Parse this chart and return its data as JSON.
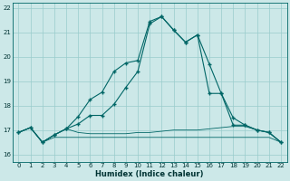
{
  "xlabel": "Humidex (Indice chaleur)",
  "bg_color": "#cce8e8",
  "line_color": "#006666",
  "grid_color": "#99cccc",
  "xlim": [
    -0.5,
    22.5
  ],
  "ylim": [
    15.7,
    22.2
  ],
  "yticks": [
    16,
    17,
    18,
    19,
    20,
    21,
    22
  ],
  "xticks": [
    0,
    1,
    2,
    3,
    4,
    5,
    6,
    7,
    8,
    9,
    10,
    11,
    12,
    13,
    14,
    15,
    16,
    17,
    18,
    19,
    20,
    21,
    22
  ],
  "line1_x": [
    0,
    1,
    2,
    3,
    4,
    5,
    6,
    7,
    8,
    9,
    10,
    11,
    12,
    13,
    14,
    15,
    16,
    17,
    18,
    19,
    20,
    21,
    22
  ],
  "line1_y": [
    16.9,
    17.1,
    16.5,
    16.7,
    16.7,
    16.7,
    16.7,
    16.7,
    16.7,
    16.7,
    16.7,
    16.7,
    16.7,
    16.7,
    16.7,
    16.7,
    16.7,
    16.7,
    16.7,
    16.7,
    16.7,
    16.7,
    16.5
  ],
  "line2_x": [
    0,
    1,
    2,
    3,
    4,
    5,
    6,
    7,
    8,
    9,
    10,
    11,
    12,
    13,
    14,
    15,
    16,
    17,
    18,
    19,
    20,
    21,
    22
  ],
  "line2_y": [
    16.9,
    17.1,
    16.5,
    16.8,
    17.05,
    16.9,
    16.85,
    16.85,
    16.85,
    16.85,
    16.9,
    16.9,
    16.95,
    17.0,
    17.0,
    17.0,
    17.05,
    17.1,
    17.15,
    17.15,
    17.0,
    16.9,
    16.5
  ],
  "line3_x": [
    0,
    1,
    2,
    3,
    4,
    5,
    6,
    7,
    8,
    9,
    10,
    11,
    12,
    13,
    14,
    15,
    16,
    17,
    18,
    19,
    20,
    21,
    22
  ],
  "line3_y": [
    16.9,
    17.1,
    16.5,
    16.8,
    17.05,
    17.25,
    17.6,
    17.6,
    18.05,
    18.75,
    19.4,
    21.35,
    21.65,
    21.1,
    20.6,
    20.9,
    18.5,
    18.5,
    17.2,
    17.2,
    17.0,
    16.9,
    16.5
  ],
  "line4_x": [
    0,
    1,
    2,
    3,
    4,
    5,
    6,
    7,
    8,
    9,
    10,
    11,
    12,
    13,
    14,
    15,
    16,
    17,
    18,
    19,
    20,
    21,
    22
  ],
  "line4_y": [
    16.9,
    17.1,
    16.5,
    16.8,
    17.05,
    17.55,
    18.25,
    18.55,
    19.4,
    19.75,
    19.85,
    21.45,
    21.65,
    21.1,
    20.6,
    20.9,
    19.7,
    18.5,
    17.5,
    17.2,
    17.0,
    16.9,
    16.5
  ]
}
